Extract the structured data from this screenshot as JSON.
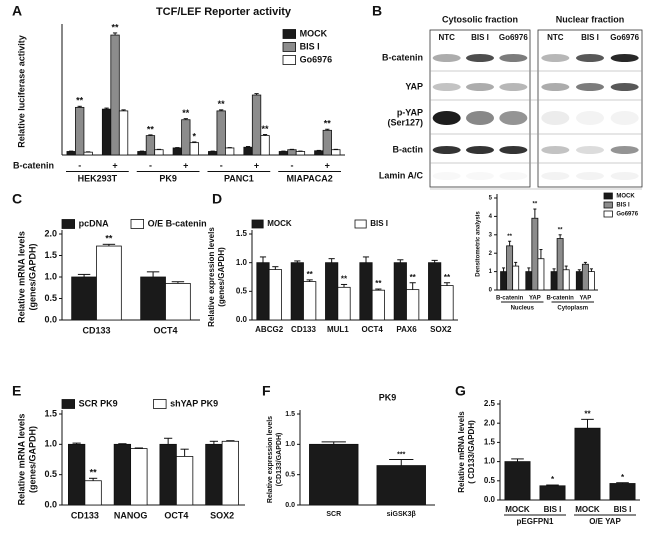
{
  "chart_data": [
    {
      "type": "bar",
      "panel": "A",
      "title": "TCF/LEF Reporter activity",
      "ylabel": [
        "Relative luciferase activity"
      ],
      "xlabel": "B-catenin",
      "categories": [
        "-",
        "+",
        "-",
        "+",
        "-",
        "+",
        "-",
        "+"
      ],
      "groups": [
        "HEK293T",
        "PK9",
        "PANC1",
        "MIAPACA2"
      ],
      "ylim": [
        0,
        36
      ],
      "legend": "upper right",
      "series": [
        {
          "name": "MOCK",
          "color": "#1a1a1a",
          "values": [
            1,
            13,
            1,
            2,
            1,
            2.2,
            1,
            1.2
          ],
          "errors": [
            0.1,
            0.3,
            0.1,
            0.1,
            0.1,
            0.2,
            0.1,
            0.1
          ],
          "annotations": [
            null,
            null,
            null,
            null,
            null,
            null,
            null,
            null
          ]
        },
        {
          "name": "BIS I",
          "color": "#8c8c8c",
          "values": [
            13.5,
            34,
            5.5,
            10,
            12.5,
            17,
            1.5,
            7
          ],
          "errors": [
            0.3,
            0.6,
            0.2,
            0.3,
            0.3,
            0.4,
            0.1,
            0.3
          ],
          "annotations": [
            "**",
            "**",
            "**",
            "**",
            "**",
            null,
            null,
            "**"
          ]
        },
        {
          "name": "Go6976",
          "color": "#ffffff",
          "values": [
            0.8,
            12.5,
            1.5,
            3.5,
            2,
            5.5,
            1,
            1.5
          ],
          "errors": [
            0.1,
            0.3,
            0.1,
            0.2,
            0.1,
            0.3,
            0.1,
            0.1
          ],
          "annotations": [
            null,
            null,
            null,
            "*",
            null,
            "**",
            null,
            null
          ]
        }
      ]
    },
    {
      "type": "bar",
      "ylabel": [
        "Densitometric analysis"
      ],
      "categories": [
        "B-catenin",
        "YAP",
        "B-catenin",
        "YAP"
      ],
      "groups": [
        "Nucleus",
        "Cytoplasm"
      ],
      "ylim": [
        0,
        5
      ],
      "yticks": [
        0,
        1,
        2,
        3,
        4,
        5
      ],
      "legend": "outside right",
      "series": [
        {
          "name": "MOCK",
          "color": "#1a1a1a",
          "values": [
            1,
            1,
            1,
            1
          ],
          "errors": [
            0.2,
            0.2,
            0.15,
            0.1
          ],
          "annotations": [
            null,
            null,
            null,
            null
          ]
        },
        {
          "name": "BIS I",
          "color": "#8c8c8c",
          "values": [
            2.4,
            3.9,
            2.8,
            1.4
          ],
          "errors": [
            0.25,
            0.5,
            0.2,
            0.1
          ],
          "annotations": [
            "**",
            "**",
            "**",
            null
          ]
        },
        {
          "name": "Go6976",
          "color": "#ffffff",
          "values": [
            1.3,
            1.7,
            1.1,
            1.0
          ],
          "errors": [
            0.2,
            0.5,
            0.2,
            0.15
          ],
          "annotations": [
            null,
            null,
            null,
            null
          ]
        }
      ]
    },
    {
      "type": "bar",
      "panel": "C",
      "ylabel": [
        "Relative mRNA levels",
        "(genes/GAPDH)"
      ],
      "categories": [
        "CD133",
        "OCT4"
      ],
      "ylim": [
        0,
        2
      ],
      "yticks": [
        {
          "value": 0,
          "label": "0.0"
        },
        0.5,
        {
          "value": 1,
          "label": "1.0"
        },
        1.5,
        {
          "value": 2,
          "label": "2.0"
        }
      ],
      "legend": "top",
      "series": [
        {
          "name": "pcDNA",
          "color": "#1a1a1a",
          "values": [
            1.0,
            1.0
          ],
          "errors": [
            0.06,
            0.12
          ],
          "annotations": [
            null,
            null
          ]
        },
        {
          "name": "O/E B-catenin",
          "color": "#ffffff",
          "values": [
            1.72,
            0.85
          ],
          "errors": [
            0.04,
            0.04
          ],
          "annotations": [
            "**",
            null
          ]
        }
      ]
    },
    {
      "type": "bar",
      "panel": "D",
      "ylabel": [
        "Relative expression levels",
        "(genes/GAPDH)"
      ],
      "categories": [
        "ABCG2",
        "CD133",
        "MUL1",
        "OCT4",
        "PAX6",
        "SOX2"
      ],
      "ylim": [
        0,
        1.5
      ],
      "yticks": [
        {
          "value": 0,
          "label": "0.0"
        },
        0.5,
        {
          "value": 1,
          "label": "1.0"
        },
        1.5
      ],
      "legend": "top",
      "series": [
        {
          "name": "MOCK",
          "color": "#1a1a1a",
          "values": [
            1.0,
            1.0,
            1.0,
            1.0,
            1.0,
            1.0
          ],
          "errors": [
            0.1,
            0.03,
            0.07,
            0.1,
            0.05,
            0.04
          ],
          "annotations": [
            null,
            null,
            null,
            null,
            null,
            null
          ]
        },
        {
          "name": "BIS I",
          "color": "#ffffff",
          "values": [
            0.88,
            0.67,
            0.57,
            0.52,
            0.53,
            0.6
          ],
          "errors": [
            0.05,
            0.03,
            0.05,
            0.02,
            0.12,
            0.05
          ],
          "annotations": [
            null,
            "**",
            "**",
            "**",
            "**",
            "**"
          ]
        }
      ]
    },
    {
      "type": "bar",
      "panel": "E",
      "ylabel": [
        "Relative mRNA levels",
        "(genes/GAPDH)"
      ],
      "categories": [
        "CD133",
        "NANOG",
        "OCT4",
        "SOX2"
      ],
      "ylim": [
        0,
        1.5
      ],
      "yticks": [
        {
          "value": 0,
          "label": "0.0"
        },
        0.5,
        {
          "value": 1,
          "label": "1.0"
        },
        1.5
      ],
      "legend": "top",
      "series": [
        {
          "name": "SCR PK9",
          "color": "#1a1a1a",
          "values": [
            1.0,
            1.0,
            1.0,
            1.0
          ],
          "errors": [
            0.02,
            0.01,
            0.1,
            0.05
          ],
          "annotations": [
            null,
            null,
            null,
            null
          ]
        },
        {
          "name": "shYAP PK9",
          "color": "#ffffff",
          "values": [
            0.4,
            0.93,
            0.8,
            1.05
          ],
          "errors": [
            0.04,
            0.01,
            0.12,
            0.01
          ],
          "annotations": [
            "**",
            null,
            null,
            null
          ]
        }
      ]
    },
    {
      "type": "bar",
      "panel": "F",
      "title": "PK9",
      "ylabel": [
        "Relative expression levels",
        "(CD133/GAPDH)"
      ],
      "categories": [
        "SCR",
        "siGSK3β"
      ],
      "ylim": [
        0,
        1.5
      ],
      "yticks": [
        {
          "value": 0,
          "label": "0.0"
        },
        0.5,
        {
          "value": 1,
          "label": "1.0"
        },
        1.5
      ],
      "color": "#1a1a1a",
      "values": [
        1.0,
        0.65
      ],
      "errors": [
        0.04,
        0.1
      ],
      "annotations": [
        null,
        "***"
      ]
    },
    {
      "type": "bar",
      "panel": "G",
      "ylabel": [
        "Relative mRNA levels",
        "( CD133/GAPDH)"
      ],
      "categories": [
        "MOCK",
        "BIS I",
        "MOCK",
        "BIS I"
      ],
      "groups": [
        "pEGFPN1",
        "O/E YAP"
      ],
      "ylim": [
        0,
        2.5
      ],
      "yticks": [
        {
          "value": 0,
          "label": "0.0"
        },
        0.5,
        {
          "value": 1,
          "label": "1.0"
        },
        1.5,
        {
          "value": 2,
          "label": "2.0"
        },
        2.5
      ],
      "color": "#1a1a1a",
      "values": [
        1.0,
        0.37,
        1.87,
        0.43
      ],
      "errors": [
        0.07,
        0.02,
        0.23,
        0.02
      ],
      "annotations": [
        null,
        "*",
        "**",
        "*"
      ]
    }
  ],
  "blot": {
    "panel": "B",
    "fractions": [
      "Cytosolic fraction",
      "Nuclear fraction"
    ],
    "lanes": [
      [
        "NTC",
        "BIS I",
        "Go6976"
      ],
      [
        "NTC",
        "BIS I",
        "Go6976"
      ]
    ],
    "rows": [
      [
        "B-catenin"
      ],
      [
        "YAP"
      ],
      [
        "p-YAP",
        "(Ser127)"
      ],
      [
        "B-actin"
      ],
      [
        "Lamin A/C"
      ]
    ]
  }
}
